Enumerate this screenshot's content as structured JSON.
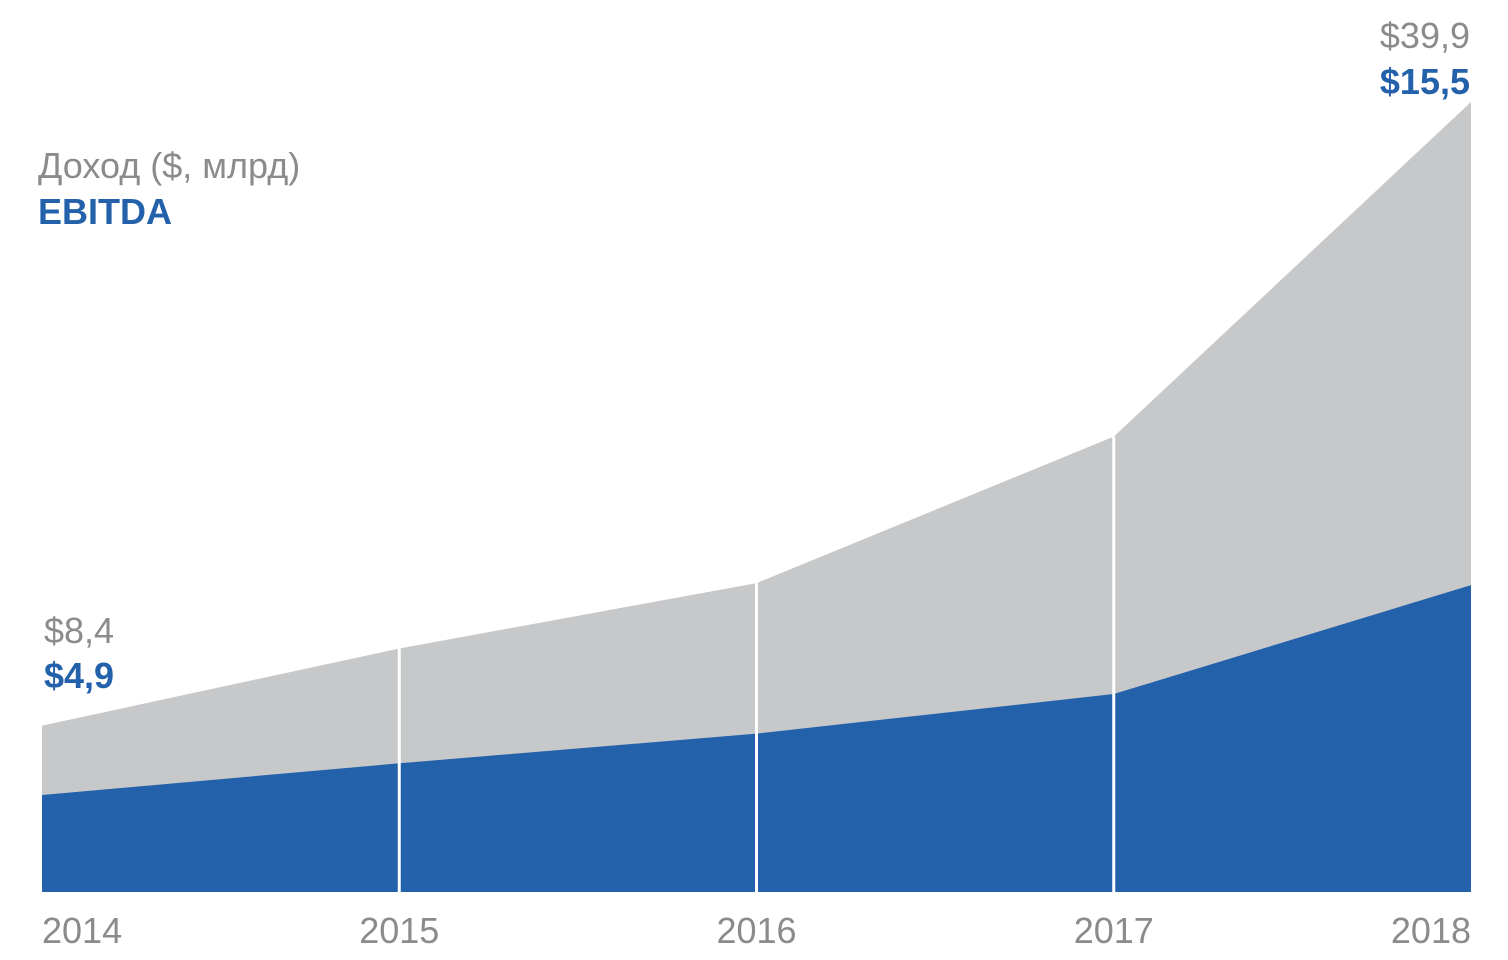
{
  "chart_data": {
    "type": "area",
    "x": [
      "2014",
      "2015",
      "2016",
      "2017",
      "2018"
    ],
    "series": [
      {
        "name": "Доход ($, млрд)",
        "values": [
          8.4,
          12.3,
          15.6,
          23.0,
          39.9
        ],
        "color": "#c7c8ca",
        "labels": {
          "first": "$8,4",
          "last": "$39,9"
        }
      },
      {
        "name": "EBITDA",
        "values": [
          4.9,
          6.5,
          8.0,
          10.0,
          15.5
        ],
        "color": "#2461ab",
        "labels": {
          "first": "$4,9",
          "last": "$15,5"
        }
      }
    ],
    "legend": {
      "placement": "top-left",
      "revenue": "Доход ($, млрд)",
      "ebitda": "EBITDA"
    },
    "ylim": [
      0,
      39.9
    ],
    "grid": false,
    "colors": {
      "text_grey": "#8a8b8d",
      "text_blue": "#2461ab",
      "divider": "#ffffff"
    }
  }
}
